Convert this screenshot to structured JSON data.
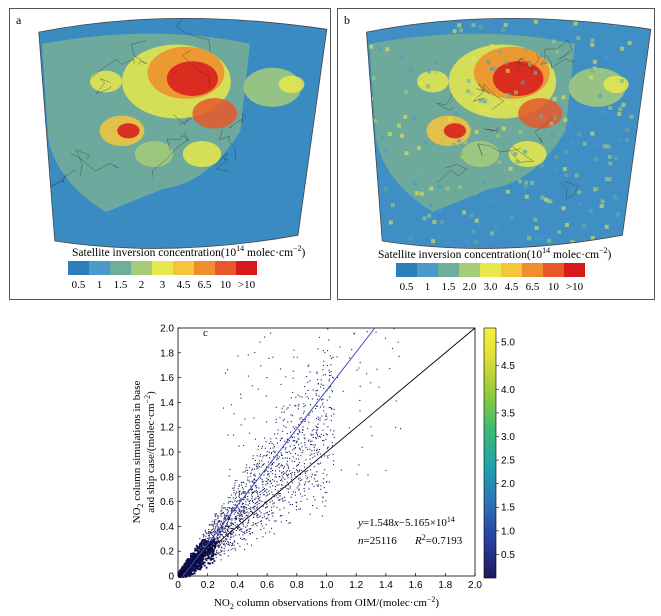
{
  "panel_a": {
    "letter": "a",
    "colorbar_title": "Satellite inversion concentration(10",
    "colorbar_exp": "14",
    "colorbar_unit": " molec·cm",
    "colorbar_unit_exp": "−2",
    "colorbar_close": ")",
    "colorbar_labels": [
      "0.5",
      "1",
      "1.5",
      "2",
      "3",
      "4.5",
      "6.5",
      "10",
      ">10"
    ],
    "colorbar_colors": [
      "#2c7fb8",
      "#4b9ac9",
      "#6fae9a",
      "#a6cc7a",
      "#e6e84d",
      "#f7c53c",
      "#f08d2e",
      "#e8572a",
      "#d7191c"
    ]
  },
  "panel_b": {
    "letter": "b",
    "colorbar_title": "Satellite inversion concentration(10",
    "colorbar_exp": "14",
    "colorbar_unit": " molec·cm",
    "colorbar_unit_exp": "−2",
    "colorbar_close": ")",
    "colorbar_labels": [
      "0.5",
      "1",
      "1.5",
      "2.0",
      "3.0",
      "4.5",
      "6.5",
      "10",
      ">10"
    ],
    "colorbar_colors": [
      "#2c7fb8",
      "#4b9ac9",
      "#6fae9a",
      "#a6cc7a",
      "#e6e84d",
      "#f7c53c",
      "#f08d2e",
      "#e8572a",
      "#d7191c"
    ]
  },
  "chart_data": {
    "type": "scatter",
    "panel_letter": "c",
    "xlabel_pre": "NO",
    "xlabel_sub": "2",
    "xlabel_post": " column observations from OIM/(molec·cm",
    "xlabel_exp": "−2",
    "xlabel_close": ")",
    "ylabel_line1": "NO",
    "ylabel_sub": "2",
    "ylabel_line1_post": " column simulations in base",
    "ylabel_line2": "and ship case/(molec·cm",
    "ylabel_exp": "−2",
    "ylabel_close": ")",
    "xlim": [
      0,
      2.0
    ],
    "ylim": [
      0,
      2.0
    ],
    "xticks": [
      "0",
      "0.2",
      "0.4",
      "0.6",
      "0.8",
      "1.0",
      "1.2",
      "1.4",
      "1.6",
      "1.8",
      "2.0"
    ],
    "yticks": [
      "0",
      "0.2",
      "0.4",
      "0.6",
      "0.8",
      "1.0",
      "1.2",
      "1.4",
      "1.6",
      "1.8",
      "2.0"
    ],
    "fit_line": {
      "slope": 1.548,
      "intercept": -0.05165,
      "color": "#3b4cc0"
    },
    "identity_line": {
      "slope": 1.0,
      "intercept": 0.0,
      "color": "#000000"
    },
    "equation_y": "y",
    "equation_rest": "=1.548",
    "equation_x": "x",
    "equation_tail": "−5.165×10",
    "equation_exp": "14",
    "n_label": "n",
    "n_value": "=25116",
    "r2_label": "R",
    "r2_exp": "2",
    "r2_value": "=0.7193",
    "colorbar_ticks": [
      "0.5",
      "1.0",
      "1.5",
      "2.0",
      "2.5",
      "3.0",
      "3.5",
      "4.0",
      "4.5",
      "5.0"
    ],
    "colorbar_range": [
      0,
      5.3
    ],
    "point_color": "#1a1a5e"
  }
}
